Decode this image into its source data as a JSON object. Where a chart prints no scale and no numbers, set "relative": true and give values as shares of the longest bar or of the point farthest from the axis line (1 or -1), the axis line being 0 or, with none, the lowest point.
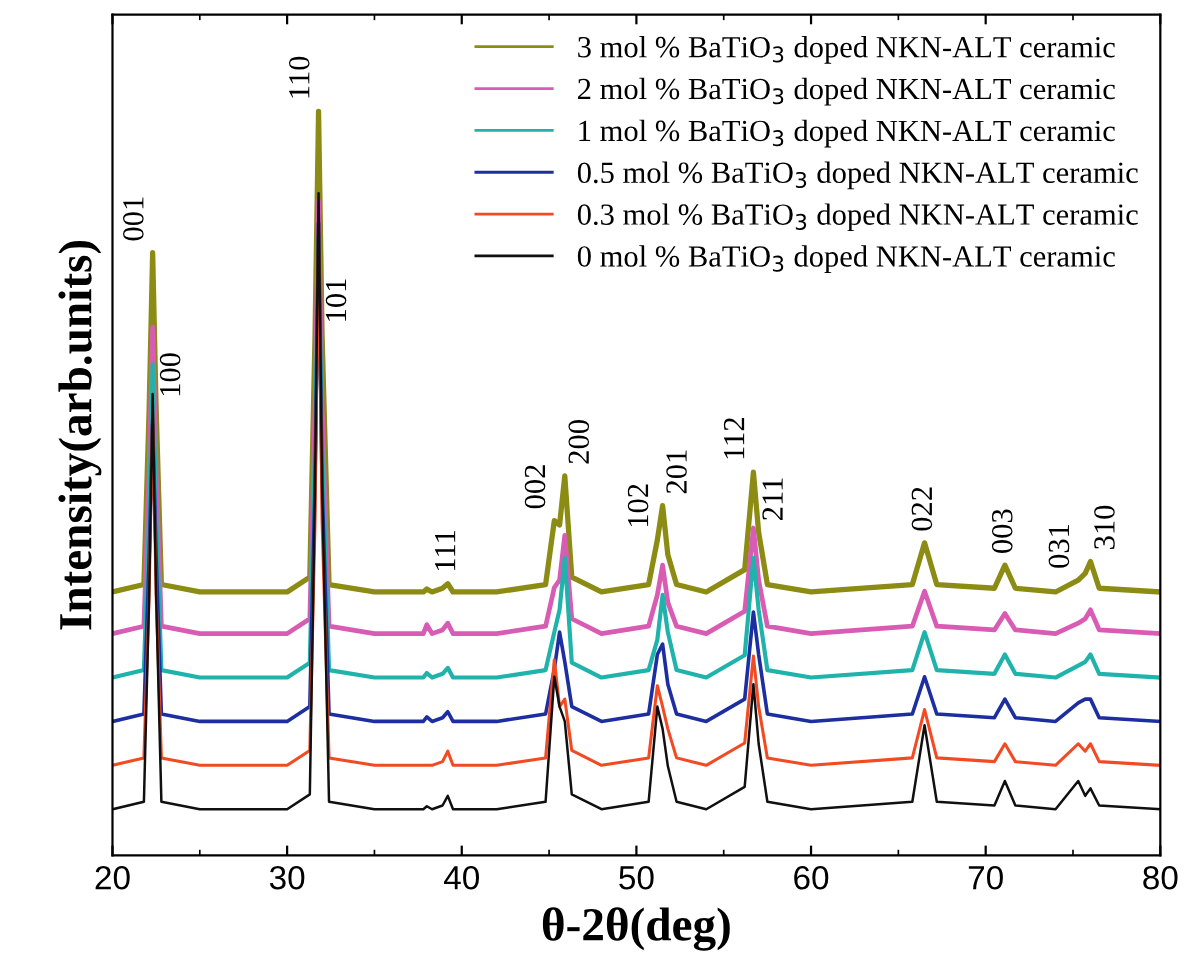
{
  "chart_data": {
    "type": "line",
    "relative": true,
    "xlabel": "θ-2θ(deg)",
    "ylabel": "Intensity(arb.units)",
    "xlim": [
      20,
      80
    ],
    "xticks": [
      20,
      30,
      40,
      50,
      60,
      70,
      80
    ],
    "tick_labels": "x",
    "legend": "top right",
    "grid": false,
    "marker": "none",
    "line_style": "solid",
    "x": [
      20,
      21.8,
      22.1,
      22.3,
      22.5,
      22.8,
      25,
      30,
      31.3,
      31.6,
      31.8,
      32.0,
      32.4,
      35,
      37.8,
      38.0,
      38.3,
      38.9,
      39.2,
      39.5,
      42,
      44.8,
      45.3,
      45.6,
      45.9,
      46.3,
      48,
      50.7,
      51.2,
      51.5,
      51.8,
      52.3,
      54,
      56.2,
      56.7,
      57.0,
      57.5,
      60,
      65.8,
      66.5,
      67.2,
      70.5,
      71.1,
      71.7,
      74,
      75.3,
      75.7,
      76.0,
      76.5,
      80
    ],
    "series": [
      {
        "name": "3 mol % BaTiO$_{3}$ doped NKN-ALT ceramic",
        "color": "#8c8c14",
        "values": [
          0.354,
          0.364,
          0.6,
          0.81,
          0.6,
          0.364,
          0.354,
          0.354,
          0.374,
          0.7,
          1.0,
          0.7,
          0.364,
          0.354,
          0.354,
          0.358,
          0.354,
          0.359,
          0.365,
          0.354,
          0.354,
          0.364,
          0.45,
          0.444,
          0.51,
          0.374,
          0.354,
          0.364,
          0.424,
          0.47,
          0.404,
          0.364,
          0.354,
          0.384,
          0.515,
          0.434,
          0.364,
          0.354,
          0.364,
          0.42,
          0.364,
          0.359,
          0.39,
          0.359,
          0.354,
          0.37,
          0.379,
          0.395,
          0.359,
          0.354
        ]
      },
      {
        "name": "2 mol % BaTiO$_{3}$ doped NKN-ALT ceramic",
        "color": "#d85cb4",
        "values": [
          0.298,
          0.308,
          0.52,
          0.71,
          0.52,
          0.308,
          0.298,
          0.298,
          0.318,
          0.6,
          0.88,
          0.6,
          0.308,
          0.298,
          0.298,
          0.31,
          0.298,
          0.303,
          0.312,
          0.298,
          0.298,
          0.308,
          0.36,
          0.37,
          0.43,
          0.318,
          0.298,
          0.308,
          0.35,
          0.39,
          0.34,
          0.308,
          0.298,
          0.328,
          0.44,
          0.37,
          0.308,
          0.298,
          0.308,
          0.355,
          0.308,
          0.303,
          0.325,
          0.303,
          0.298,
          0.312,
          0.318,
          0.33,
          0.303,
          0.298
        ]
      },
      {
        "name": "1 mol % BaTiO$_{3}$ doped NKN-ALT ceramic",
        "color": "#1fb3ac",
        "values": [
          0.239,
          0.249,
          0.46,
          0.66,
          0.46,
          0.249,
          0.239,
          0.239,
          0.259,
          0.55,
          0.83,
          0.55,
          0.249,
          0.239,
          0.239,
          0.245,
          0.239,
          0.244,
          0.252,
          0.239,
          0.239,
          0.249,
          0.3,
          0.33,
          0.4,
          0.259,
          0.239,
          0.249,
          0.29,
          0.35,
          0.3,
          0.249,
          0.239,
          0.269,
          0.4,
          0.33,
          0.249,
          0.239,
          0.249,
          0.3,
          0.249,
          0.244,
          0.27,
          0.244,
          0.239,
          0.255,
          0.26,
          0.27,
          0.244,
          0.239
        ]
      },
      {
        "name": "0.5 mol % BaTiO$_{3}$ doped NKN-ALT ceramic",
        "color": "#1c2ea0",
        "values": [
          0.18,
          0.19,
          0.4,
          0.58,
          0.4,
          0.19,
          0.18,
          0.18,
          0.2,
          0.5,
          0.85,
          0.5,
          0.19,
          0.18,
          0.18,
          0.186,
          0.18,
          0.185,
          0.193,
          0.18,
          0.18,
          0.19,
          0.25,
          0.3,
          0.26,
          0.2,
          0.18,
          0.19,
          0.27,
          0.284,
          0.23,
          0.19,
          0.18,
          0.21,
          0.327,
          0.27,
          0.19,
          0.18,
          0.19,
          0.24,
          0.19,
          0.185,
          0.21,
          0.185,
          0.18,
          0.205,
          0.21,
          0.21,
          0.185,
          0.18
        ]
      },
      {
        "name": "0.3 mol % BaTiO$_{3}$ doped NKN-ALT ceramic",
        "color": "#f24a22",
        "values": [
          0.121,
          0.131,
          0.35,
          0.6,
          0.35,
          0.131,
          0.121,
          0.121,
          0.141,
          0.45,
          0.85,
          0.45,
          0.131,
          0.121,
          0.121,
          0.121,
          0.121,
          0.126,
          0.14,
          0.121,
          0.121,
          0.131,
          0.263,
          0.2,
          0.21,
          0.141,
          0.121,
          0.131,
          0.228,
          0.2,
          0.17,
          0.131,
          0.121,
          0.151,
          0.268,
          0.2,
          0.131,
          0.121,
          0.131,
          0.196,
          0.131,
          0.126,
          0.15,
          0.126,
          0.121,
          0.15,
          0.14,
          0.15,
          0.126,
          0.121
        ]
      },
      {
        "name": "0 mol % BaTiO$_{3}$ doped NKN-ALT ceramic",
        "color": "#101010",
        "values": [
          0.062,
          0.072,
          0.35,
          0.62,
          0.35,
          0.072,
          0.062,
          0.062,
          0.082,
          0.5,
          0.89,
          0.5,
          0.072,
          0.062,
          0.062,
          0.066,
          0.062,
          0.067,
          0.08,
          0.062,
          0.062,
          0.072,
          0.24,
          0.2,
          0.18,
          0.082,
          0.062,
          0.072,
          0.2,
          0.17,
          0.12,
          0.072,
          0.062,
          0.092,
          0.23,
          0.15,
          0.072,
          0.062,
          0.072,
          0.175,
          0.072,
          0.067,
          0.1,
          0.067,
          0.062,
          0.1,
          0.08,
          0.09,
          0.067,
          0.062
        ]
      }
    ],
    "annotations": [
      {
        "text": "001",
        "x": 22.3,
        "y": 0.81
      },
      {
        "text": "100",
        "x": 22.5,
        "y": 0.6
      },
      {
        "text": "110",
        "x": 31.8,
        "y": 1.0
      },
      {
        "text": "101",
        "x": 32.0,
        "y": 0.7
      },
      {
        "text": "111",
        "x": 39.2,
        "y": 0.365
      },
      {
        "text": "002",
        "x": 45.3,
        "y": 0.45
      },
      {
        "text": "200",
        "x": 45.9,
        "y": 0.51
      },
      {
        "text": "102",
        "x": 51.2,
        "y": 0.424
      },
      {
        "text": "201",
        "x": 51.5,
        "y": 0.47
      },
      {
        "text": "112",
        "x": 56.7,
        "y": 0.515
      },
      {
        "text": "211",
        "x": 57.0,
        "y": 0.434
      },
      {
        "text": "022",
        "x": 66.5,
        "y": 0.42
      },
      {
        "text": "003",
        "x": 71.1,
        "y": 0.39
      },
      {
        "text": "031",
        "x": 75.3,
        "y": 0.37
      },
      {
        "text": "310",
        "x": 76.0,
        "y": 0.395
      }
    ]
  }
}
